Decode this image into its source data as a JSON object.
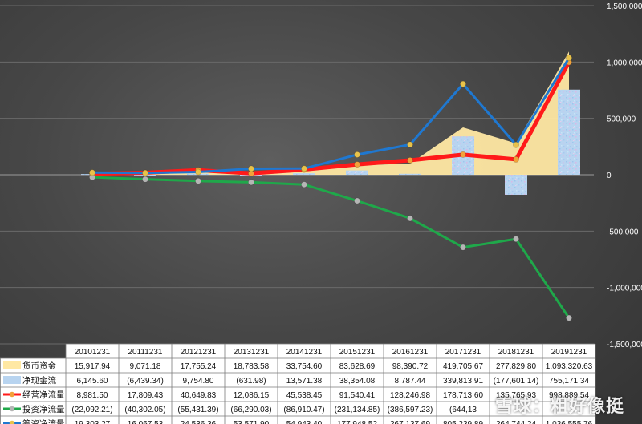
{
  "chart_data": {
    "type": "bar+line+area",
    "title": "",
    "xlabel": "",
    "ylabel": "",
    "ylim": [
      -1500000,
      1500000
    ],
    "yticks": [
      1500000,
      1000000,
      500000,
      0,
      -500000,
      -1000000,
      -1500000
    ],
    "ytick_labels": [
      "1,500,000",
      "1,000,000",
      "500,000",
      "0",
      "-500,000",
      "-1,000,000",
      "-1,500,000"
    ],
    "grid": true,
    "legend": "data-table",
    "categories": [
      "20101231",
      "20111231",
      "20121231",
      "20131231",
      "20141231",
      "20151231",
      "20161231",
      "20171231",
      "20181231",
      "20191231"
    ],
    "series": [
      {
        "name": "货币资金",
        "kind": "area",
        "color": "#FFE8A3",
        "values": [
          15917.94,
          9071.18,
          17755.24,
          18783.58,
          33754.6,
          83628.69,
          98390.72,
          419705.67,
          277829.8,
          1093320.63
        ],
        "labels": [
          "15,917.94",
          "9,071.18",
          "17,755.24",
          "18,783.58",
          "33,754.60",
          "83,628.69",
          "98,390.72",
          "419,705.67",
          "277,829.80",
          "1,093,320.63"
        ]
      },
      {
        "name": "净现金流",
        "kind": "bar",
        "color": "#B8D4F0",
        "values": [
          6145.6,
          -6439.34,
          9754.8,
          -631.98,
          13571.38,
          38354.08,
          8787.44,
          339813.91,
          -177601.14,
          755171.34
        ],
        "labels": [
          "6,145.60",
          "(6,439.34)",
          "9,754.80",
          "(631.98)",
          "13,571.38",
          "38,354.08",
          "8,787.44",
          "339,813.91",
          "(177,601.14)",
          "755,171.34"
        ]
      },
      {
        "name": "经营净流量",
        "kind": "line",
        "color": "#FF1A1A",
        "marker": "#F2A23A",
        "width": 5,
        "values": [
          8981.5,
          17809.43,
          40649.83,
          12086.15,
          45538.45,
          91540.41,
          128246.98,
          178713.6,
          135765.93,
          998889.54
        ],
        "labels": [
          "8,981.50",
          "17,809.43",
          "40,649.83",
          "12,086.15",
          "45,538.45",
          "91,540.41",
          "128,246.98",
          "178,713.60",
          "135,765.93",
          "998,889.54"
        ]
      },
      {
        "name": "投资净流量",
        "kind": "line",
        "color": "#1FA84A",
        "marker": "#B5B5B5",
        "width": 3,
        "values": [
          -22092.21,
          -40302.05,
          -55431.39,
          -66290.03,
          -86910.47,
          -231134.85,
          -386597.23,
          -644134,
          -570000,
          -1270000
        ],
        "labels": [
          "(22,092.21)",
          "(40,302.05)",
          "(55,431.39)",
          "(66,290.03)",
          "(86,910.47)",
          "(231,134.85)",
          "(386,597.23)",
          "(644,13",
          "",
          ""
        ]
      },
      {
        "name": "筹资净流量",
        "kind": "line",
        "color": "#1F78D1",
        "marker": "#E8C24A",
        "width": 3,
        "values": [
          19303.27,
          16067.53,
          24536.36,
          53571.9,
          54943.4,
          177948.52,
          267137.69,
          805239.89,
          264744.24,
          1036555.76
        ],
        "labels": [
          "19,303.27",
          "16,067.53",
          "24,536.36",
          "53,571.90",
          "54,943.40",
          "177,948.52",
          "267,137.69",
          "805,239.89",
          "264,744.24",
          "1,036,555.76"
        ]
      }
    ]
  },
  "watermark": "雪球：粗好像挺"
}
